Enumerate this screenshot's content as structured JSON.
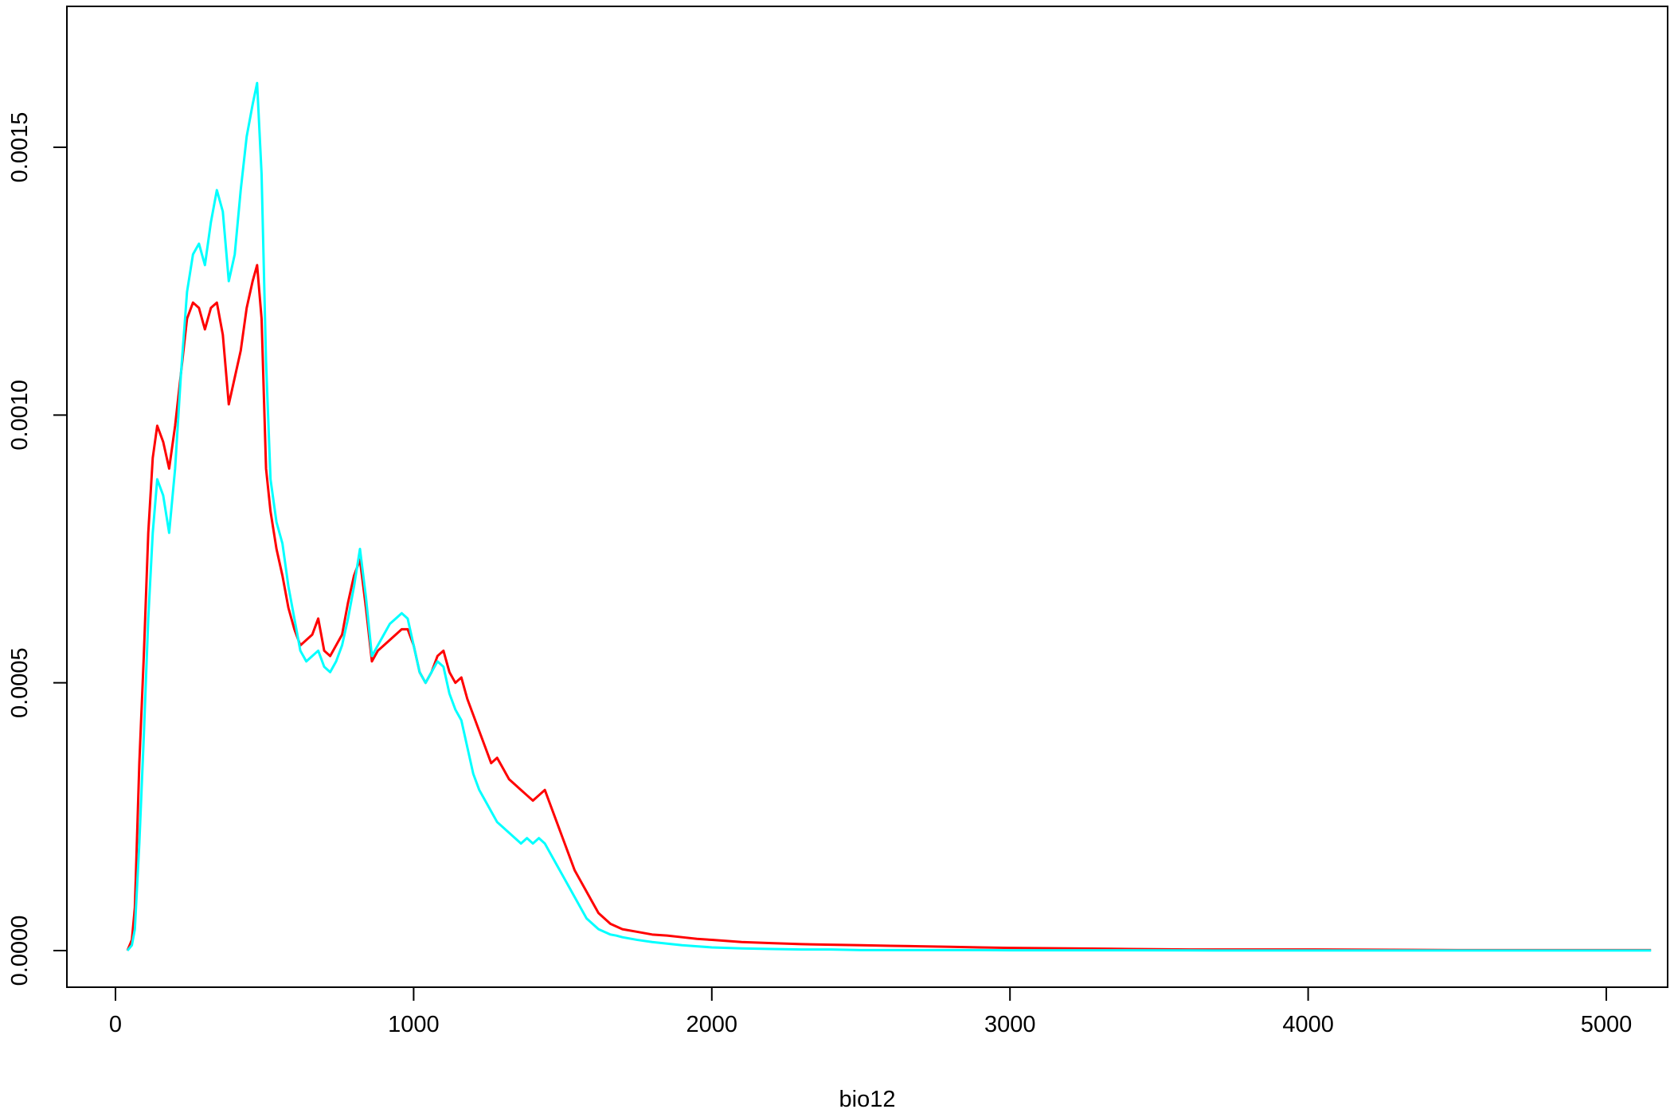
{
  "chart_data": {
    "type": "line",
    "title": "",
    "xlabel": "bio12",
    "ylabel": "",
    "xlim": [
      -200,
      5500
    ],
    "ylim": [
      -6.8e-05,
      0.0017
    ],
    "grid": false,
    "legend": "none",
    "x_ticks": [
      0,
      1000,
      2000,
      3000,
      4000,
      5000
    ],
    "x_tick_labels": [
      "0",
      "1000",
      "2000",
      "3000",
      "4000",
      "5000"
    ],
    "y_ticks": [
      0.0,
      0.0005,
      0.001,
      0.0015
    ],
    "y_tick_labels": [
      "0.0000",
      "0.0005",
      "0.0010",
      "0.0015"
    ],
    "series": [
      {
        "color": "#ff0000",
        "x": [
          40,
          55,
          65,
          80,
          95,
          110,
          125,
          140,
          160,
          180,
          200,
          220,
          240,
          260,
          280,
          300,
          320,
          340,
          360,
          380,
          400,
          420,
          440,
          460,
          475,
          490,
          505,
          520,
          540,
          560,
          580,
          600,
          620,
          640,
          660,
          680,
          700,
          720,
          740,
          760,
          780,
          800,
          820,
          840,
          860,
          880,
          900,
          920,
          940,
          960,
          980,
          1000,
          1020,
          1040,
          1060,
          1080,
          1100,
          1120,
          1140,
          1160,
          1180,
          1200,
          1220,
          1240,
          1260,
          1280,
          1300,
          1320,
          1340,
          1360,
          1380,
          1400,
          1420,
          1440,
          1460,
          1480,
          1500,
          1520,
          1540,
          1560,
          1580,
          1600,
          1620,
          1640,
          1660,
          1680,
          1700,
          1750,
          1800,
          1850,
          1900,
          1950,
          2000,
          2100,
          2200,
          2300,
          2400,
          2500,
          2600,
          2700,
          2800,
          2900,
          3000,
          3200,
          3400,
          3600,
          3800,
          4000,
          4500,
          5000,
          5150
        ],
        "y": [
          0.0,
          2e-05,
          8e-05,
          0.00035,
          0.00055,
          0.00078,
          0.00092,
          0.00098,
          0.00095,
          0.0009,
          0.00098,
          0.00108,
          0.00118,
          0.00121,
          0.0012,
          0.00116,
          0.0012,
          0.00121,
          0.00115,
          0.00102,
          0.00107,
          0.00112,
          0.0012,
          0.00125,
          0.00128,
          0.00118,
          0.0009,
          0.00082,
          0.00075,
          0.0007,
          0.00064,
          0.0006,
          0.00057,
          0.00058,
          0.00059,
          0.00062,
          0.00056,
          0.00055,
          0.00057,
          0.00059,
          0.00065,
          0.0007,
          0.00073,
          0.00064,
          0.00054,
          0.00056,
          0.00057,
          0.00058,
          0.00059,
          0.0006,
          0.0006,
          0.00057,
          0.00052,
          0.0005,
          0.00052,
          0.00055,
          0.00056,
          0.00052,
          0.0005,
          0.00051,
          0.00047,
          0.00044,
          0.00041,
          0.00038,
          0.00035,
          0.00036,
          0.00034,
          0.00032,
          0.00031,
          0.0003,
          0.00029,
          0.00028,
          0.00029,
          0.0003,
          0.00027,
          0.00024,
          0.00021,
          0.00018,
          0.00015,
          0.00013,
          0.00011,
          9e-05,
          7e-05,
          6e-05,
          5e-05,
          4.5e-05,
          4e-05,
          3.5e-05,
          3e-05,
          2.8e-05,
          2.5e-05,
          2.2e-05,
          2e-05,
          1.6e-05,
          1.4e-05,
          1.2e-05,
          1.1e-05,
          1e-05,
          9e-06,
          8e-06,
          7e-06,
          6e-06,
          5e-06,
          4e-06,
          3e-06,
          2e-06,
          2e-06,
          2e-06,
          1e-06,
          1e-06,
          1e-06
        ]
      },
      {
        "color": "#00ffff",
        "x": [
          40,
          55,
          65,
          80,
          95,
          110,
          125,
          140,
          160,
          180,
          200,
          220,
          240,
          260,
          280,
          300,
          320,
          340,
          360,
          380,
          400,
          420,
          440,
          460,
          475,
          490,
          505,
          520,
          540,
          560,
          580,
          600,
          620,
          640,
          660,
          680,
          700,
          720,
          740,
          760,
          780,
          800,
          820,
          840,
          860,
          880,
          900,
          920,
          940,
          960,
          980,
          1000,
          1020,
          1040,
          1060,
          1080,
          1100,
          1120,
          1140,
          1160,
          1180,
          1200,
          1220,
          1240,
          1260,
          1280,
          1300,
          1320,
          1340,
          1360,
          1380,
          1400,
          1420,
          1440,
          1460,
          1480,
          1500,
          1520,
          1540,
          1560,
          1580,
          1600,
          1620,
          1640,
          1660,
          1680,
          1700,
          1750,
          1800,
          1850,
          1900,
          1950,
          2000,
          2100,
          2200,
          2300,
          2400,
          2500,
          2600,
          2700,
          2800,
          2900,
          3000,
          3200,
          3400,
          3600,
          3800,
          4000,
          4500,
          5000,
          5150
        ],
        "y": [
          0.0,
          1e-05,
          4e-05,
          0.0002,
          0.0004,
          0.00062,
          0.00078,
          0.00088,
          0.00085,
          0.00078,
          0.0009,
          0.00108,
          0.00123,
          0.0013,
          0.00132,
          0.00128,
          0.00136,
          0.00142,
          0.00138,
          0.00125,
          0.0013,
          0.00142,
          0.00152,
          0.00158,
          0.00162,
          0.00145,
          0.0011,
          0.00088,
          0.0008,
          0.00076,
          0.00068,
          0.00062,
          0.00056,
          0.00054,
          0.00055,
          0.00056,
          0.00053,
          0.00052,
          0.00054,
          0.00057,
          0.00062,
          0.00068,
          0.00075,
          0.00066,
          0.00055,
          0.00057,
          0.00059,
          0.00061,
          0.00062,
          0.00063,
          0.00062,
          0.00057,
          0.00052,
          0.0005,
          0.00052,
          0.00054,
          0.00053,
          0.00048,
          0.00045,
          0.00043,
          0.00038,
          0.00033,
          0.0003,
          0.00028,
          0.00026,
          0.00024,
          0.00023,
          0.00022,
          0.00021,
          0.0002,
          0.00021,
          0.0002,
          0.00021,
          0.0002,
          0.00018,
          0.00016,
          0.00014,
          0.00012,
          0.0001,
          8e-05,
          6e-05,
          5e-05,
          4e-05,
          3.5e-05,
          3e-05,
          2.8e-05,
          2.5e-05,
          2e-05,
          1.6e-05,
          1.3e-05,
          1e-05,
          8e-06,
          6e-06,
          4e-06,
          3e-06,
          2e-06,
          2e-06,
          1e-06,
          1e-06,
          1e-06,
          1e-06,
          1e-06,
          5e-07,
          5e-07,
          5e-07,
          3e-07,
          2e-07,
          1e-07,
          1e-07,
          1e-07,
          1e-07
        ]
      }
    ]
  }
}
